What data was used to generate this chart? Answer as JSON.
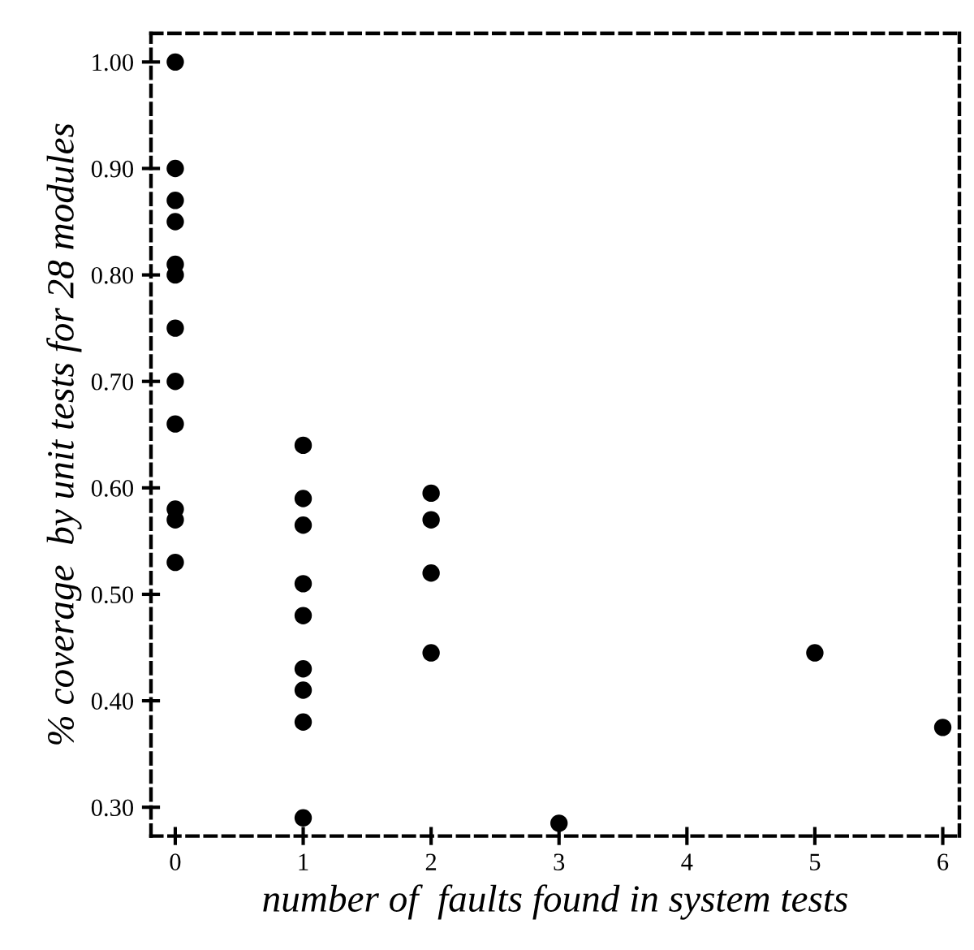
{
  "chart_data": {
    "type": "scatter",
    "xlabel": "number of  faults found in system tests",
    "ylabel": "% coverage  by unit tests for 28 modules",
    "series": [
      {
        "color": "#000000",
        "x": [
          0,
          0,
          0,
          0,
          0,
          0,
          0,
          0,
          0,
          0,
          0,
          0,
          1,
          1,
          1,
          1,
          1,
          1,
          1,
          1,
          1,
          2,
          2,
          2,
          2,
          3,
          5,
          6
        ],
        "values": [
          1.0,
          0.9,
          0.87,
          0.85,
          0.81,
          0.8,
          0.75,
          0.7,
          0.66,
          0.58,
          0.57,
          0.53,
          0.64,
          0.59,
          0.565,
          0.51,
          0.48,
          0.43,
          0.41,
          0.38,
          0.29,
          0.595,
          0.57,
          0.52,
          0.445,
          0.285,
          0.445,
          0.375
        ]
      }
    ],
    "xlim": [
      -0.19,
      6.13
    ],
    "ylim": [
      0.273,
      1.027
    ],
    "xticks": [
      0,
      1,
      2,
      3,
      4,
      5,
      6
    ],
    "yticks": [
      {
        "value": 0.3,
        "label": "0.30"
      },
      {
        "value": 0.4,
        "label": "0.40"
      },
      {
        "value": 0.5,
        "label": "0.50"
      },
      {
        "value": 0.6,
        "label": "0.60"
      },
      {
        "value": 0.7,
        "label": "0.70"
      },
      {
        "value": 0.8,
        "label": "0.80"
      },
      {
        "value": 0.9,
        "label": "0.90"
      },
      {
        "value": 1.0,
        "label": "1.00"
      }
    ],
    "marker": "circle",
    "grid": false,
    "legend": false
  }
}
